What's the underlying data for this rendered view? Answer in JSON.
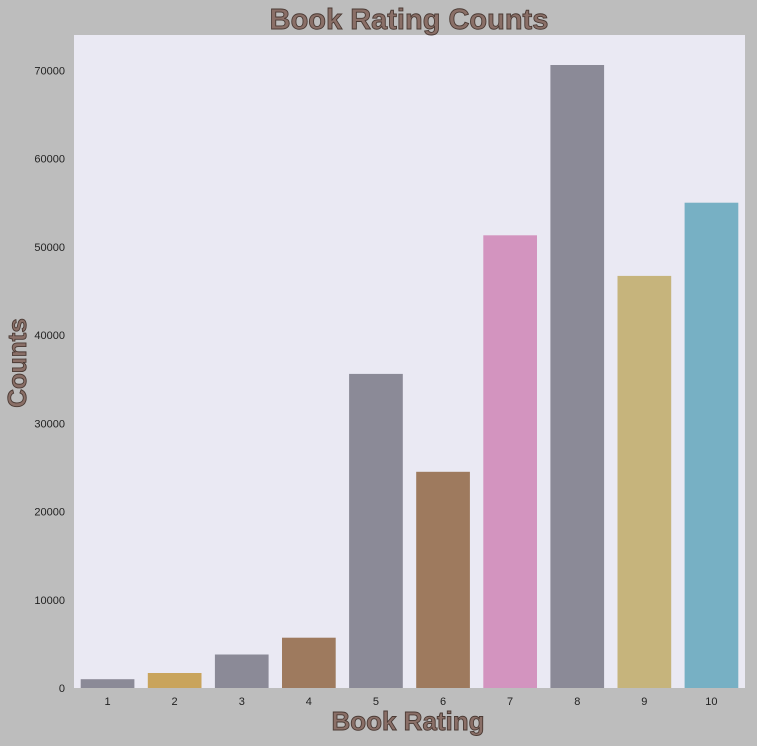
{
  "chart_data": {
    "type": "bar",
    "title": "Book Rating Counts",
    "xlabel": "Book Rating",
    "ylabel": "Counts",
    "categories": [
      "1",
      "2",
      "3",
      "4",
      "5",
      "6",
      "7",
      "8",
      "9",
      "10"
    ],
    "values": [
      1000,
      1700,
      3800,
      5700,
      35600,
      24500,
      51300,
      70600,
      46700,
      55000
    ],
    "ylim": [
      0,
      74000
    ],
    "yticks": [
      0,
      10000,
      20000,
      30000,
      40000,
      50000,
      60000,
      70000
    ],
    "grid": false,
    "legend": "none",
    "colors": {
      "page_background": "#bdbdbd",
      "plot_background": "#eae9f3",
      "title_fill": "#8a6f67",
      "title_outline": "#4a3a34",
      "bars": [
        "#8b8a97",
        "#c9a45c",
        "#8b8a97",
        "#9e7a5e",
        "#8b8a97",
        "#9e7a5e",
        "#d394bf",
        "#8b8a97",
        "#c6b47c",
        "#77b0c4"
      ]
    }
  }
}
